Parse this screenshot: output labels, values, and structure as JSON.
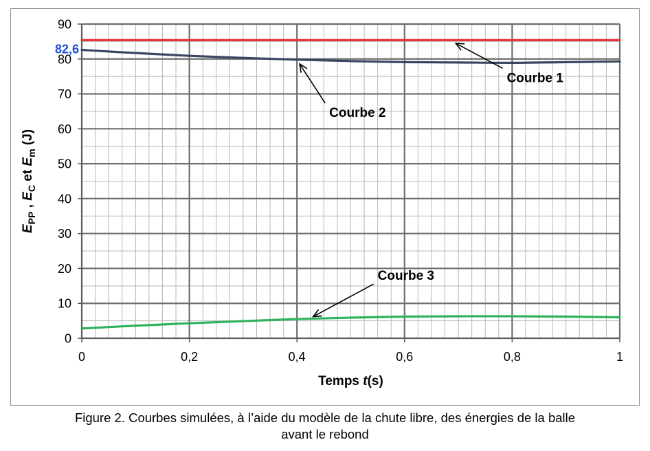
{
  "chart_data": {
    "type": "line",
    "xlabel": {
      "main": "Temps ",
      "italic": "t",
      "rest": "(s)"
    },
    "ylabel": {
      "parts": [
        {
          "t": "E",
          "style": "italic"
        },
        {
          "t": "PP",
          "style": "sub"
        },
        {
          "t": " , ",
          "style": "normal"
        },
        {
          "t": "E",
          "style": "italic"
        },
        {
          "t": "C",
          "style": "sub"
        },
        {
          "t": " et ",
          "style": "normal"
        },
        {
          "t": "E",
          "style": "italic"
        },
        {
          "t": "m",
          "style": "sub"
        },
        {
          "t": " (J)",
          "style": "normal"
        }
      ]
    },
    "xlim": [
      0,
      1
    ],
    "ylim": [
      0,
      90
    ],
    "x_ticks": [
      {
        "v": 0,
        "label": "0"
      },
      {
        "v": 0.2,
        "label": "0,2"
      },
      {
        "v": 0.4,
        "label": "0,4"
      },
      {
        "v": 0.6,
        "label": "0,6"
      },
      {
        "v": 0.8,
        "label": "0,8"
      },
      {
        "v": 1,
        "label": "1"
      }
    ],
    "y_ticks": [
      {
        "v": 0,
        "label": "0"
      },
      {
        "v": 10,
        "label": "10"
      },
      {
        "v": 20,
        "label": "20"
      },
      {
        "v": 30,
        "label": "30"
      },
      {
        "v": 40,
        "label": "40"
      },
      {
        "v": 50,
        "label": "50"
      },
      {
        "v": 60,
        "label": "60"
      },
      {
        "v": 70,
        "label": "70"
      },
      {
        "v": 80,
        "label": "80"
      },
      {
        "v": 90,
        "label": "90"
      }
    ],
    "grid": {
      "major_x_step": 0.2,
      "minor_x_step": 0.025,
      "major_y_step": 10,
      "minor_y_step": 5
    },
    "highlight_tick": {
      "v": 82.6,
      "label": "82,6",
      "color": "#1f4fd1"
    },
    "series": [
      {
        "name": "Courbe 1",
        "color": "#e8363a",
        "x": [
          0,
          1
        ],
        "y": [
          85.4,
          85.4
        ]
      },
      {
        "name": "Courbe 2",
        "color": "#3a4660",
        "x": [
          0,
          0.1,
          0.2,
          0.3,
          0.4,
          0.5,
          0.6,
          0.7,
          0.8,
          0.9,
          1.0
        ],
        "y": [
          82.6,
          81.7,
          80.9,
          80.3,
          79.8,
          79.4,
          79.1,
          79.0,
          78.9,
          79.1,
          79.3
        ]
      },
      {
        "name": "Courbe 3",
        "color": "#2fb25b",
        "x": [
          0,
          0.1,
          0.2,
          0.3,
          0.4,
          0.5,
          0.6,
          0.7,
          0.8,
          0.9,
          1.0
        ],
        "y": [
          2.8,
          3.6,
          4.3,
          4.9,
          5.5,
          5.9,
          6.2,
          6.3,
          6.3,
          6.2,
          6.0
        ]
      }
    ],
    "annotations": [
      {
        "text": "Courbe 1",
        "text_x": 0.79,
        "text_y": 73.4,
        "arrow_x": 0.695,
        "arrow_y": 84.5
      },
      {
        "text": "Courbe 2",
        "text_x": 0.46,
        "text_y": 63.4,
        "arrow_x": 0.405,
        "arrow_y": 78.6
      },
      {
        "text": "Courbe 3",
        "text_x": 0.55,
        "text_y": 16.7,
        "arrow_x": 0.43,
        "arrow_y": 6.2
      }
    ]
  },
  "caption": {
    "line1": "Figure 2. Courbes simulées, à l’aide du modèle de la chute libre, des énergies de la balle",
    "line2": "avant le rebond"
  }
}
